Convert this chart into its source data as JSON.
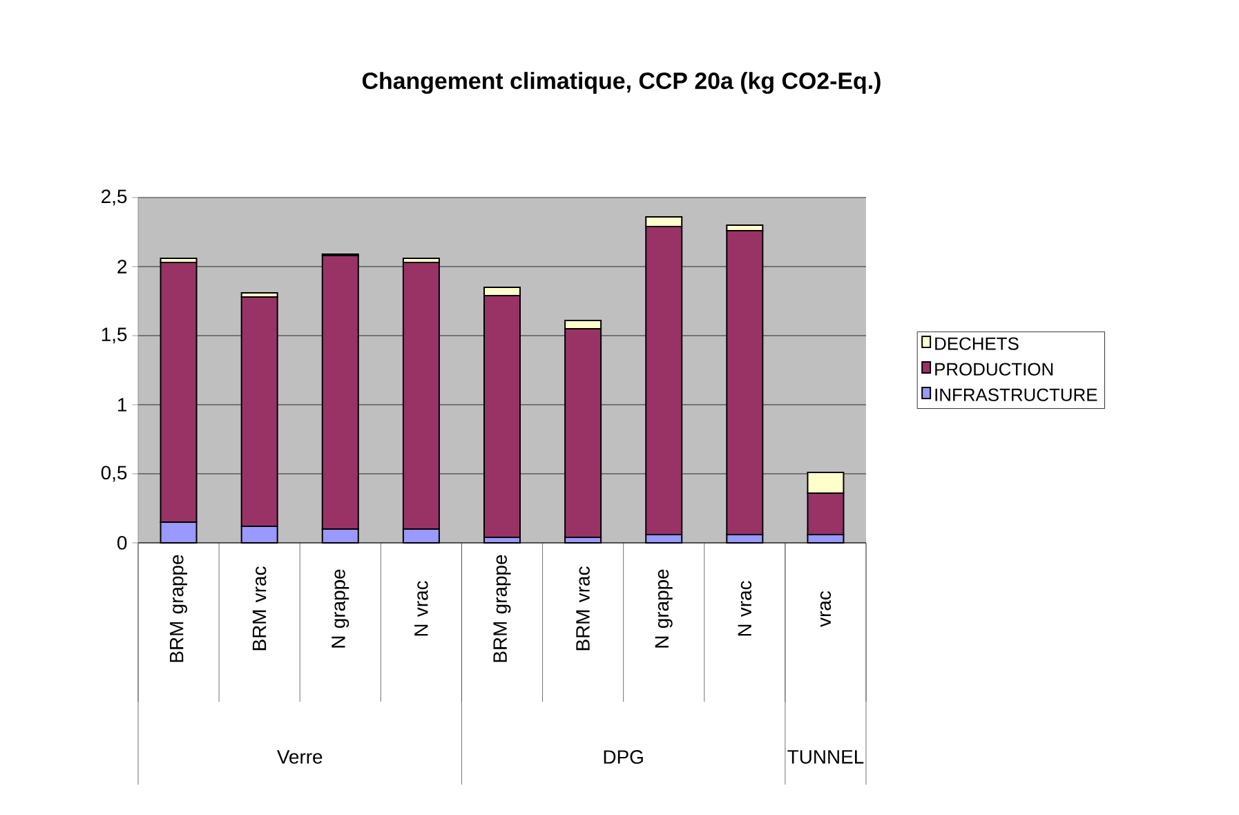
{
  "chart_data": {
    "type": "bar",
    "title": "Changement climatique, CCP 20a (kg CO2-Eq.)",
    "categories": [
      "BRM grappe",
      "BRM vrac",
      "N grappe",
      "N vrac",
      "BRM grappe",
      "BRM vrac",
      "N grappe",
      "N vrac",
      "vrac"
    ],
    "stacked": true,
    "series": [
      {
        "name": "INFRASTRUCTURE",
        "color": "#9999ff",
        "values": [
          0.15,
          0.12,
          0.1,
          0.1,
          0.04,
          0.04,
          0.06,
          0.06,
          0.06
        ]
      },
      {
        "name": "PRODUCTION",
        "color": "#993366",
        "values": [
          1.88,
          1.66,
          1.98,
          1.93,
          1.75,
          1.51,
          2.23,
          2.2,
          0.3
        ]
      },
      {
        "name": "DECHETS",
        "color": "#ffffcc",
        "values": [
          0.03,
          0.03,
          0.01,
          0.03,
          0.06,
          0.06,
          0.07,
          0.04,
          0.15
        ]
      }
    ],
    "ylim": [
      0,
      2.5
    ],
    "yticks": [
      0,
      {
        "value": 0.5,
        "label": "0,5"
      },
      1,
      {
        "value": 1.5,
        "label": "1,5"
      },
      2,
      {
        "value": 2.5,
        "label": "2,5"
      }
    ],
    "grid": "y",
    "legend": "right",
    "annotations": [
      "Verre",
      "DPG",
      "TUNNEL"
    ]
  }
}
